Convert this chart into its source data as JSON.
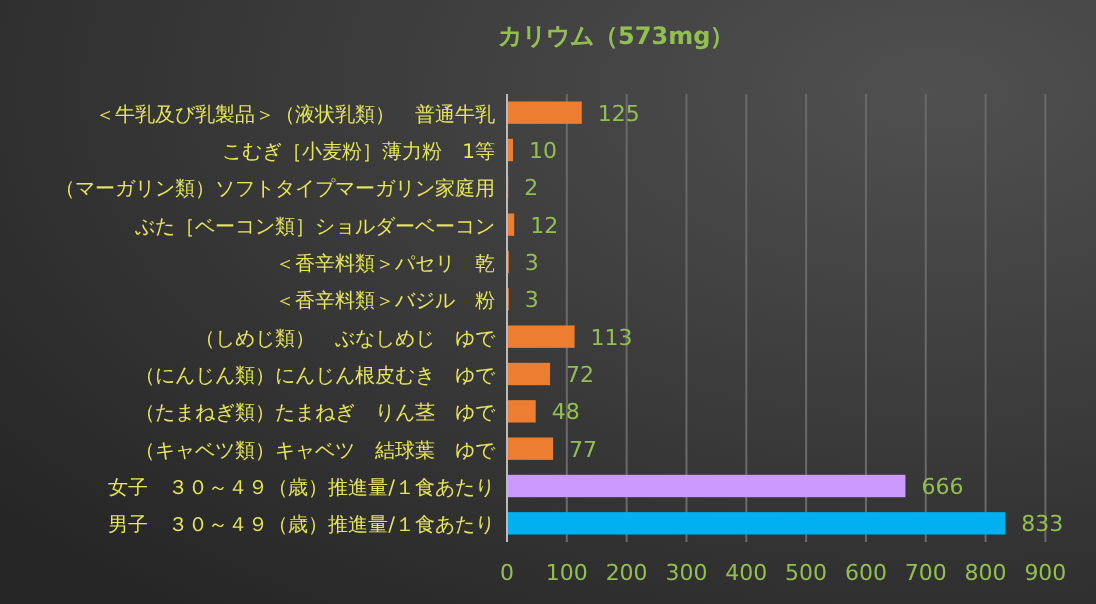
{
  "chart_data": {
    "type": "bar",
    "orientation": "horizontal",
    "title": "カリウム（573mg）",
    "categories": [
      "＜牛乳及び乳製品＞（液状乳類）　普通牛乳",
      "こむぎ［小麦粉］薄力粉　1等",
      "（マーガリン類）ソフトタイプマーガリン家庭用",
      "ぶた［ベーコン類］ショルダーベーコン",
      "＜香辛料類＞パセリ　乾",
      "＜香辛料類＞バジル　粉",
      "（しめじ類）　ぶなしめじ　ゆで",
      "（にんじん類）にんじん根皮むき　ゆで",
      "（たまねぎ類）たまねぎ　りん茎　ゆで",
      "（キャベツ類）キャベツ　結球葉　ゆで",
      "女子　３０～４９（歳）推進量/１食あたり",
      "男子　３０～４９（歳）推進量/１食あたり"
    ],
    "values": [
      125,
      10,
      2,
      12,
      3,
      3,
      113,
      72,
      48,
      77,
      666,
      833
    ],
    "colors": [
      "#ed7d31",
      "#ed7d31",
      "#ed7d31",
      "#ed7d31",
      "#ed7d31",
      "#ed7d31",
      "#ed7d31",
      "#ed7d31",
      "#ed7d31",
      "#ed7d31",
      "#cc99ff",
      "#00b0f0"
    ],
    "xlim": [
      0,
      900
    ],
    "xticks": [
      0,
      100,
      200,
      300,
      400,
      500,
      600,
      700,
      800,
      900
    ],
    "grid": "x",
    "data_labels": true
  }
}
